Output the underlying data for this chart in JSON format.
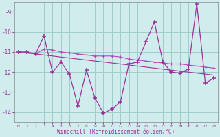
{
  "x": [
    0,
    1,
    2,
    3,
    4,
    5,
    6,
    7,
    8,
    9,
    10,
    11,
    12,
    13,
    14,
    15,
    16,
    17,
    18,
    19,
    20,
    21,
    22,
    23
  ],
  "line_main": [
    -11.0,
    -11.0,
    -11.1,
    -10.2,
    -12.0,
    -11.5,
    -12.1,
    -13.7,
    -11.9,
    -13.3,
    -14.05,
    -13.85,
    -13.5,
    -11.6,
    -11.5,
    -10.5,
    -9.5,
    -11.5,
    -12.0,
    -12.05,
    -11.85,
    -8.6,
    -12.55,
    -12.3
  ],
  "line_avg": [
    -11.0,
    -11.05,
    -11.1,
    -10.85,
    -10.9,
    -11.0,
    -11.05,
    -11.1,
    -11.15,
    -11.2,
    -11.2,
    -11.2,
    -11.25,
    -11.35,
    -11.4,
    -11.45,
    -11.5,
    -11.55,
    -11.6,
    -11.6,
    -11.65,
    -11.7,
    -11.75,
    -11.8
  ],
  "line_reg": [
    -11.0,
    -11.05,
    -11.1,
    -11.15,
    -11.2,
    -11.25,
    -11.3,
    -11.35,
    -11.4,
    -11.45,
    -11.5,
    -11.55,
    -11.6,
    -11.65,
    -11.7,
    -11.75,
    -11.8,
    -11.85,
    -11.9,
    -11.95,
    -12.0,
    -12.05,
    -12.1,
    -12.15
  ],
  "color_main": "#993399",
  "color_avg": "#bb44bb",
  "color_reg": "#993399",
  "xlabel": "Windchill (Refroidissement éolien,°C)",
  "yticks": [
    -9,
    -10,
    -11,
    -12,
    -13,
    -14
  ],
  "xticks": [
    0,
    1,
    2,
    3,
    4,
    5,
    6,
    7,
    8,
    9,
    10,
    11,
    12,
    13,
    14,
    15,
    16,
    17,
    18,
    19,
    20,
    21,
    22,
    23
  ],
  "ylim_min": -14.5,
  "ylim_max": -8.5,
  "bg_color": "#d0ecec",
  "grid_color": "#a0cccc"
}
